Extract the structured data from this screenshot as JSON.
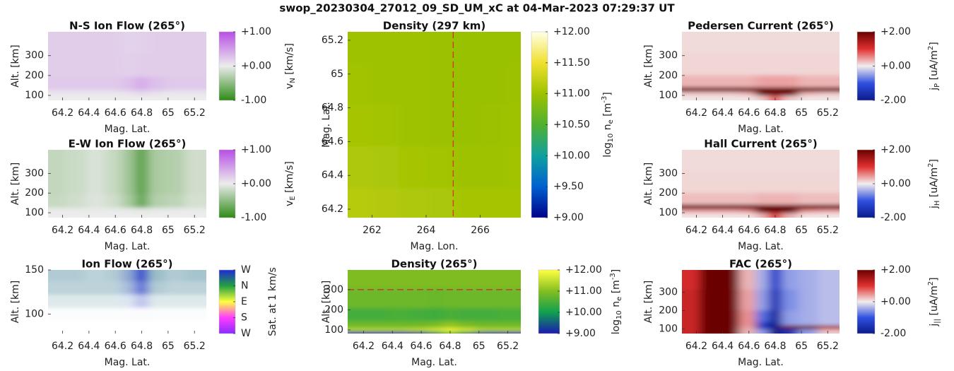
{
  "title": "swop_20230304_27012_09_SD_UM_xC at 04-Mar-2023 07:29:37 UT",
  "chart_data": [
    {
      "type": "heatmap",
      "title": "N-S Ion Flow (265°)",
      "xlabel": "Mag. Lat.",
      "ylabel": "Alt. [km]",
      "x": [
        64.15,
        64.3,
        64.45,
        64.6,
        64.7,
        64.8,
        64.9,
        65.05,
        65.2
      ],
      "y": [
        90,
        115,
        140,
        250,
        380
      ],
      "z": [
        [
          0,
          0,
          0,
          0,
          0,
          0,
          0,
          0,
          0
        ],
        [
          0.05,
          0.05,
          0.05,
          0.05,
          0.08,
          0.15,
          0.08,
          0.05,
          0.05
        ],
        [
          0.22,
          0.22,
          0.22,
          0.22,
          0.28,
          0.4,
          0.28,
          0.22,
          0.22
        ],
        [
          0.2,
          0.2,
          0.2,
          0.2,
          0.18,
          0.2,
          0.2,
          0.2,
          0.2
        ],
        [
          0.2,
          0.2,
          0.2,
          0.2,
          0.16,
          0.18,
          0.2,
          0.2,
          0.2
        ]
      ],
      "xlim": [
        64.09,
        65.29
      ],
      "ylim": [
        75,
        420
      ],
      "xticks": [
        64.2,
        64.4,
        64.6,
        64.8,
        65,
        65.2
      ],
      "yticks": [
        100,
        200,
        300
      ],
      "clim": [
        -1,
        1
      ],
      "cticks": [
        {
          "value": 1,
          "label": "+1.00"
        },
        {
          "value": 0,
          "label": "+0.00"
        },
        {
          "value": -1,
          "label": "-1.00"
        }
      ],
      "colorscale": [
        "#2e8b17",
        "#ececec",
        "#b64fe4"
      ],
      "clabel": [
        {
          "text": "v"
        },
        {
          "text": "N",
          "script": "sub"
        },
        {
          "text": " [km/s]"
        }
      ]
    },
    {
      "type": "heatmap",
      "title": "E-W Ion Flow (265°)",
      "xlabel": "Mag. Lat.",
      "ylabel": "Alt. [km]",
      "x": [
        64.15,
        64.3,
        64.45,
        64.6,
        64.7,
        64.8,
        64.9,
        65.05,
        65.2
      ],
      "y": [
        90,
        115,
        140,
        250,
        380
      ],
      "z": [
        [
          0,
          0,
          0,
          0,
          0,
          0,
          0,
          0,
          0
        ],
        [
          -0.02,
          -0.02,
          -0.02,
          -0.02,
          -0.03,
          -0.05,
          -0.03,
          -0.02,
          -0.02
        ],
        [
          -0.2,
          -0.15,
          -0.08,
          -0.15,
          -0.35,
          -0.7,
          -0.3,
          -0.25,
          -0.12
        ],
        [
          -0.22,
          -0.18,
          -0.1,
          -0.2,
          -0.4,
          -0.75,
          -0.35,
          -0.3,
          -0.15
        ],
        [
          -0.22,
          -0.18,
          -0.1,
          -0.2,
          -0.4,
          -0.75,
          -0.35,
          -0.3,
          -0.15
        ]
      ],
      "xlim": [
        64.09,
        65.29
      ],
      "ylim": [
        75,
        420
      ],
      "xticks": [
        64.2,
        64.4,
        64.6,
        64.8,
        65,
        65.2
      ],
      "yticks": [
        100,
        200,
        300
      ],
      "clim": [
        -1,
        1
      ],
      "cticks": [
        {
          "value": 1,
          "label": "+1.00"
        },
        {
          "value": 0,
          "label": "+0.00"
        },
        {
          "value": -1,
          "label": "-1.00"
        }
      ],
      "colorscale": [
        "#2e8b17",
        "#ececec",
        "#b64fe4"
      ],
      "clabel": [
        {
          "text": "v"
        },
        {
          "text": "E",
          "script": "sub"
        },
        {
          "text": " [km/s]"
        }
      ]
    },
    {
      "type": "flowmap",
      "title": "Ion Flow (265°)",
      "xlabel": "Mag. Lat.",
      "ylabel": "Alt. [km]",
      "x": [
        64.15,
        64.3,
        64.45,
        64.6,
        64.7,
        64.8,
        64.9,
        65.05,
        65.2
      ],
      "y": [
        85,
        100,
        115,
        130,
        145
      ],
      "direction": [
        [
          130,
          130,
          130,
          130,
          150,
          170,
          130,
          130,
          130
        ],
        [
          130,
          130,
          130,
          130,
          150,
          170,
          130,
          130,
          130
        ],
        [
          130,
          130,
          130,
          130,
          150,
          170,
          130,
          130,
          130
        ],
        [
          130,
          130,
          130,
          130,
          150,
          170,
          130,
          130,
          130
        ],
        [
          130,
          130,
          130,
          130,
          150,
          170,
          130,
          130,
          130
        ]
      ],
      "magnitude": [
        [
          0,
          0,
          0,
          0,
          0,
          0,
          0,
          0,
          0
        ],
        [
          0.02,
          0.02,
          0.02,
          0.02,
          0.02,
          0.02,
          0.02,
          0.02,
          0.02
        ],
        [
          0.15,
          0.15,
          0.15,
          0.15,
          0.15,
          0.3,
          0.15,
          0.15,
          0.15
        ],
        [
          0.3,
          0.3,
          0.3,
          0.3,
          0.4,
          0.7,
          0.35,
          0.3,
          0.3
        ],
        [
          0.35,
          0.35,
          0.3,
          0.35,
          0.5,
          0.9,
          0.45,
          0.35,
          0.4
        ]
      ],
      "xlim": [
        64.09,
        65.29
      ],
      "ylim": [
        78,
        150
      ],
      "xticks": [
        64.2,
        64.4,
        64.6,
        64.8,
        65,
        65.2
      ],
      "yticks": [
        100,
        150
      ],
      "clim": [
        -180,
        180
      ],
      "cticks": [
        {
          "value": 180,
          "label": "W"
        },
        {
          "value": 90,
          "label": "N"
        },
        {
          "value": 0,
          "label": "E"
        },
        {
          "value": -90,
          "label": "S"
        },
        {
          "value": -180,
          "label": "W"
        }
      ],
      "colorscale": [
        "#8a2cff",
        "#ff3cff",
        "#ffff40",
        "#22a040",
        "#1e2ad8"
      ],
      "clabel": [
        {
          "text": "Sat. at 1 km/s"
        }
      ]
    },
    {
      "type": "heatmap",
      "title": "Density (297 km)",
      "xlabel": "Mag. Lon.",
      "ylabel": "Mag. Lat.",
      "x": [
        261.5,
        262.5,
        263.5,
        264.5,
        265.5,
        266.5,
        267.3
      ],
      "y": [
        64.2,
        64.45,
        64.7,
        64.95,
        65.2
      ],
      "z": [
        [
          11.15,
          11.12,
          11.1,
          11.08,
          11.05,
          11.05,
          11.05
        ],
        [
          11.1,
          11.08,
          11.05,
          11.03,
          11.0,
          11.0,
          11.02
        ],
        [
          11.05,
          11.03,
          11.0,
          10.98,
          10.97,
          10.98,
          11.0
        ],
        [
          11.02,
          11.0,
          11.0,
          10.98,
          10.97,
          10.97,
          10.98
        ],
        [
          11.0,
          11.0,
          11.0,
          10.98,
          10.96,
          10.96,
          10.97
        ]
      ],
      "xlim": [
        261.1,
        267.5
      ],
      "ylim": [
        64.15,
        65.25
      ],
      "xticks": [
        262,
        264,
        266
      ],
      "yticks": [
        64.2,
        64.4,
        64.6,
        64.8,
        65,
        65.2
      ],
      "vline": 265,
      "line_color": "#d62728",
      "clim": [
        9,
        12
      ],
      "cticks": [
        {
          "value": 12,
          "label": "+12.00"
        },
        {
          "value": 11.5,
          "label": "+11.50"
        },
        {
          "value": 11,
          "label": "+11.00"
        },
        {
          "value": 10.5,
          "label": "+10.50"
        },
        {
          "value": 10,
          "label": "+10.00"
        },
        {
          "value": 9.5,
          "label": "+9.50"
        },
        {
          "value": 9,
          "label": "+9.00"
        }
      ],
      "colorscale": [
        "#00008b",
        "#0060d0",
        "#10a0a0",
        "#50b030",
        "#9ec200",
        "#f0e030",
        "#ffffe8"
      ],
      "clabel": [
        {
          "text": "log"
        },
        {
          "text": "10",
          "script": "sub"
        },
        {
          "text": " n"
        },
        {
          "text": "e",
          "script": "sub"
        },
        {
          "text": " [m"
        },
        {
          "text": "-3",
          "script": "sup"
        },
        {
          "text": "]"
        }
      ]
    },
    {
      "type": "heatmap",
      "title": "Density (265°)",
      "xlabel": "Mag. Lat.",
      "ylabel": "Alt. [km]",
      "x": [
        64.15,
        64.3,
        64.45,
        64.6,
        64.7,
        64.8,
        64.9,
        65.05,
        65.2
      ],
      "y": [
        88,
        100,
        120,
        170,
        250,
        370
      ],
      "z": [
        [
          9.1,
          9.1,
          9.1,
          9.3,
          9.8,
          10.8,
          9.8,
          9.2,
          9.1
        ],
        [
          11.5,
          11.5,
          11.5,
          11.6,
          11.8,
          12,
          11.8,
          11.5,
          11.5
        ],
        [
          10.8,
          10.8,
          10.8,
          10.8,
          10.9,
          11.1,
          10.9,
          10.8,
          10.8
        ],
        [
          10.45,
          10.45,
          10.5,
          10.45,
          10.4,
          10.5,
          10.45,
          10.45,
          10.5
        ],
        [
          10.8,
          10.8,
          10.8,
          10.8,
          10.75,
          10.8,
          10.8,
          10.8,
          10.8
        ],
        [
          10.95,
          10.95,
          10.95,
          10.95,
          10.95,
          10.95,
          10.95,
          10.95,
          10.95
        ]
      ],
      "xlim": [
        64.09,
        65.29
      ],
      "ylim": [
        82,
        398
      ],
      "xticks": [
        64.2,
        64.4,
        64.6,
        64.8,
        65,
        65.2
      ],
      "yticks": [
        100,
        200,
        300
      ],
      "hline": 300,
      "line_color": "#d62728",
      "clim": [
        9,
        12
      ],
      "cticks": [
        {
          "value": 12,
          "label": "+12.00"
        },
        {
          "value": 11,
          "label": "+11.00"
        },
        {
          "value": 10,
          "label": "+10.00"
        },
        {
          "value": 9,
          "label": "+9.00"
        }
      ],
      "colorscale": [
        "#1a1ab0",
        "#10a050",
        "#84be20",
        "#ffff40"
      ],
      "clabel": [
        {
          "text": "log"
        },
        {
          "text": "10",
          "script": "sub"
        },
        {
          "text": " n"
        },
        {
          "text": "e",
          "script": "sub"
        },
        {
          "text": " [m"
        },
        {
          "text": "-3",
          "script": "sup"
        },
        {
          "text": "]"
        }
      ]
    },
    {
      "type": "heatmap",
      "title": "Pedersen Current (265°)",
      "xlabel": "Mag. Lat.",
      "ylabel": "Alt. [km]",
      "x": [
        64.15,
        64.3,
        64.45,
        64.6,
        64.7,
        64.8,
        64.9,
        65.05,
        65.2
      ],
      "y": [
        90,
        110,
        130,
        155,
        250,
        380
      ],
      "z": [
        [
          0.05,
          0.05,
          0.05,
          0.05,
          0.2,
          0.8,
          0.2,
          0.05,
          0.05
        ],
        [
          0.2,
          0.2,
          0.2,
          0.3,
          2.5,
          3,
          2.5,
          0.3,
          0.2
        ],
        [
          2.5,
          2.5,
          2.5,
          2.5,
          3,
          3,
          3,
          2.5,
          2.5
        ],
        [
          0.3,
          0.3,
          0.3,
          0.3,
          0.4,
          0.4,
          0.4,
          0.3,
          0.3
        ],
        [
          0.12,
          0.12,
          0.12,
          0.12,
          0.12,
          0.12,
          0.12,
          0.12,
          0.12
        ],
        [
          0.1,
          0.1,
          0.1,
          0.1,
          0.1,
          0.1,
          0.1,
          0.1,
          0.1
        ]
      ],
      "xlim": [
        64.09,
        65.29
      ],
      "ylim": [
        75,
        420
      ],
      "xticks": [
        64.2,
        64.4,
        64.6,
        64.8,
        65,
        65.2
      ],
      "yticks": [
        100,
        200,
        300
      ],
      "clim": [
        -2,
        2
      ],
      "cticks": [
        {
          "value": 2,
          "label": "+2.00"
        },
        {
          "value": 0,
          "label": "+0.00"
        },
        {
          "value": -2,
          "label": "-2.00"
        }
      ],
      "colorscale": [
        "#0a1a8a",
        "#3050e0",
        "#f3eded",
        "#e03030",
        "#6a0000"
      ],
      "clabel": [
        {
          "text": "j"
        },
        {
          "text": "P",
          "script": "sub"
        },
        {
          "text": " [uA/m"
        },
        {
          "text": "2",
          "script": "sup"
        },
        {
          "text": "]"
        }
      ]
    },
    {
      "type": "heatmap",
      "title": "Hall Current (265°)",
      "xlabel": "Mag. Lat.",
      "ylabel": "Alt. [km]",
      "x": [
        64.15,
        64.3,
        64.45,
        64.6,
        64.7,
        64.8,
        64.9,
        65.05,
        65.2
      ],
      "y": [
        90,
        110,
        130,
        155,
        250,
        380
      ],
      "z": [
        [
          0.05,
          0.05,
          0.05,
          0.05,
          0.3,
          1.0,
          0.3,
          0.05,
          0.05
        ],
        [
          0.4,
          0.4,
          0.4,
          0.5,
          2.5,
          3,
          2.5,
          0.5,
          0.4
        ],
        [
          2.5,
          2.5,
          2.5,
          2.5,
          3,
          3,
          3,
          2.5,
          2.5
        ],
        [
          0.25,
          0.25,
          0.25,
          0.25,
          0.3,
          0.3,
          0.3,
          0.25,
          0.25
        ],
        [
          0.12,
          0.12,
          0.12,
          0.12,
          0.12,
          0.12,
          0.12,
          0.12,
          0.12
        ],
        [
          0.1,
          0.1,
          0.1,
          0.1,
          0.1,
          0.1,
          0.1,
          0.1,
          0.1
        ]
      ],
      "xlim": [
        64.09,
        65.29
      ],
      "ylim": [
        75,
        420
      ],
      "xticks": [
        64.2,
        64.4,
        64.6,
        64.8,
        65,
        65.2
      ],
      "yticks": [
        100,
        200,
        300
      ],
      "clim": [
        -2,
        2
      ],
      "cticks": [
        {
          "value": 2,
          "label": "+2.00"
        },
        {
          "value": 0,
          "label": "+0.00"
        },
        {
          "value": -2,
          "label": "-2.00"
        }
      ],
      "colorscale": [
        "#0a1a8a",
        "#3050e0",
        "#f3eded",
        "#e03030",
        "#6a0000"
      ],
      "clabel": [
        {
          "text": "j"
        },
        {
          "text": "H",
          "script": "sub"
        },
        {
          "text": " [uA/m"
        },
        {
          "text": "2",
          "script": "sup"
        },
        {
          "text": "]"
        }
      ]
    },
    {
      "type": "heatmap",
      "title": "FAC (265°)",
      "xlabel": "Mag. Lat.",
      "ylabel": "Alt. [km]",
      "x": [
        64.15,
        64.3,
        64.45,
        64.6,
        64.7,
        64.8,
        64.9,
        65.05,
        65.2
      ],
      "y": [
        90,
        110,
        130,
        155,
        250,
        380
      ],
      "z": [
        [
          1.2,
          2.5,
          2.5,
          0.3,
          -0.5,
          -2.5,
          -1.5,
          -0.5,
          0.2
        ],
        [
          1.2,
          2.5,
          2.5,
          0.4,
          -1.5,
          -2.5,
          2.5,
          2.0,
          1.5
        ],
        [
          1.2,
          2.5,
          2.5,
          0.5,
          -1.2,
          -2.5,
          -0.5,
          -0.4,
          -0.3
        ],
        [
          1.2,
          2.5,
          2.5,
          0.5,
          -0.8,
          -1.8,
          -0.5,
          -0.4,
          -0.3
        ],
        [
          1.2,
          2.5,
          2.5,
          0.4,
          -0.5,
          -1.5,
          -0.6,
          -0.4,
          -0.3
        ],
        [
          1.1,
          2.5,
          2.5,
          0.3,
          -0.4,
          -1.3,
          -0.5,
          -0.4,
          -0.3
        ]
      ],
      "xlim": [
        64.09,
        65.29
      ],
      "ylim": [
        75,
        420
      ],
      "xticks": [
        64.2,
        64.4,
        64.6,
        64.8,
        65,
        65.2
      ],
      "yticks": [
        100,
        200,
        300
      ],
      "clim": [
        -2,
        2
      ],
      "cticks": [
        {
          "value": 2,
          "label": "+2.00"
        },
        {
          "value": 0,
          "label": "+0.00"
        },
        {
          "value": -2,
          "label": "-2.00"
        }
      ],
      "colorscale": [
        "#0a1a8a",
        "#3050e0",
        "#f3eded",
        "#e03030",
        "#6a0000"
      ],
      "clabel": [
        {
          "text": "j"
        },
        {
          "text": "||",
          "script": "sub"
        },
        {
          "text": " [uA/m"
        },
        {
          "text": "2",
          "script": "sup"
        },
        {
          "text": "]"
        }
      ]
    }
  ]
}
